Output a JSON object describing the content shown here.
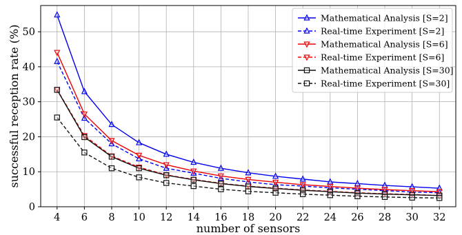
{
  "chart_data": {
    "type": "line",
    "title": "",
    "xlabel": "number of sensors",
    "ylabel": "successful reception rate (%)",
    "x": [
      4,
      6,
      8,
      10,
      12,
      14,
      16,
      18,
      20,
      22,
      24,
      26,
      28,
      30,
      32
    ],
    "xticks": [
      "4",
      "6",
      "8",
      "10",
      "12",
      "14",
      "16",
      "18",
      "20",
      "22",
      "24",
      "26",
      "28",
      "30",
      "32"
    ],
    "yticks": [
      "0",
      "10",
      "20",
      "30",
      "40",
      "50"
    ],
    "xlim": [
      2.8,
      33.2
    ],
    "ylim": [
      0,
      57.5
    ],
    "grid": true,
    "legend_position": "top-right",
    "series": [
      {
        "name": "Mathematical Analysis [S=2]",
        "color": "#0000ee",
        "dash": "solid",
        "marker": "triangle-up",
        "values": [
          54.8,
          32.9,
          23.5,
          18.3,
          15.0,
          12.7,
          11.0,
          9.7,
          8.7,
          7.9,
          7.1,
          6.6,
          6.1,
          5.7,
          5.3
        ]
      },
      {
        "name": "Real-time Experiment [S=2]",
        "color": "#0000ee",
        "dash": "dashed",
        "marker": "triangle-up",
        "values": [
          41.5,
          25.3,
          18.0,
          13.7,
          11.0,
          9.6,
          8.1,
          7.1,
          6.3,
          5.9,
          5.4,
          5.0,
          4.6,
          4.2,
          4.0
        ]
      },
      {
        "name": "Mathematical Analysis [S=6]",
        "color": "#ee0000",
        "dash": "solid",
        "marker": "triangle-down",
        "values": [
          44.1,
          26.5,
          18.9,
          14.7,
          12.0,
          10.2,
          8.8,
          7.8,
          7.0,
          6.3,
          5.8,
          5.3,
          4.9,
          4.6,
          4.3
        ]
      },
      {
        "name": "Real-time Experiment [S=6]",
        "color": "#ee0000",
        "dash": "dashed",
        "marker": "triangle-down",
        "values": [
          33.5,
          20.3,
          14.5,
          11.3,
          9.1,
          7.8,
          6.7,
          5.9,
          5.3,
          4.8,
          4.4,
          4.0,
          3.7,
          3.5,
          3.2
        ]
      },
      {
        "name": "Mathematical Analysis [S=30]",
        "color": "#111111",
        "dash": "solid",
        "marker": "square",
        "values": [
          33.4,
          19.9,
          14.3,
          11.0,
          9.0,
          7.7,
          6.6,
          5.8,
          5.2,
          4.7,
          4.3,
          3.9,
          3.6,
          3.4,
          3.2
        ]
      },
      {
        "name": "Real-time Experiment [S=30]",
        "color": "#111111",
        "dash": "dashed",
        "marker": "square",
        "values": [
          25.5,
          15.5,
          11.0,
          8.4,
          6.8,
          5.9,
          5.0,
          4.4,
          4.0,
          3.6,
          3.3,
          3.0,
          2.8,
          2.6,
          2.5
        ]
      }
    ]
  }
}
